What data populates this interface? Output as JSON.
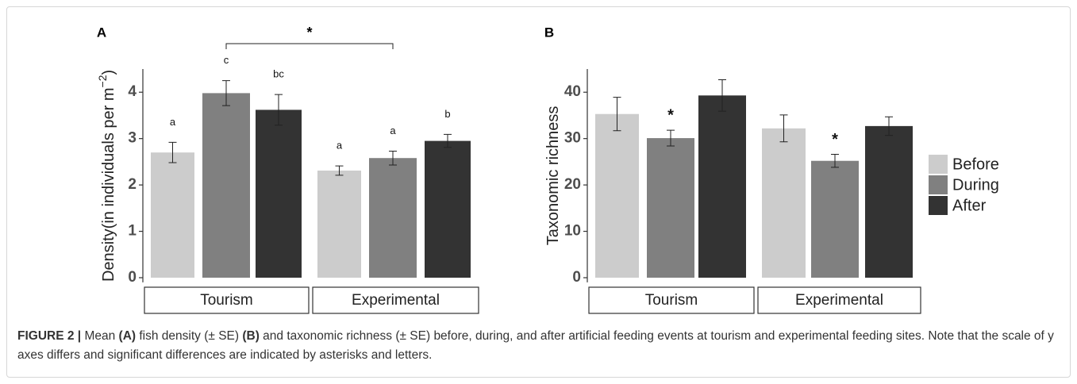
{
  "chart_data": [
    {
      "type": "bar",
      "panel": "A",
      "y_label": [
        "Density(in individuals per m",
        "−2",
        ")"
      ],
      "categories": [
        "Tourism",
        "Experimental"
      ],
      "ylim": [
        -0.1,
        4.5
      ],
      "yticks": [
        0,
        1,
        2,
        3,
        4
      ],
      "series": [
        {
          "color": "#cccccc",
          "values": [
            2.7,
            2.31
          ],
          "errors": [
            0.22,
            0.1
          ],
          "labels": [
            "a",
            "a"
          ]
        },
        {
          "color": "#808080",
          "values": [
            3.98,
            2.58
          ],
          "errors": [
            0.27,
            0.15
          ],
          "labels": [
            "c",
            "a"
          ]
        },
        {
          "color": "#333333",
          "values": [
            3.62,
            2.95
          ],
          "errors": [
            0.33,
            0.14
          ],
          "labels": [
            "bc",
            "b"
          ]
        }
      ],
      "bracket_label": "*"
    },
    {
      "type": "bar",
      "panel": "B",
      "y_label": [
        "Taxonomic richness"
      ],
      "categories": [
        "Tourism",
        "Experimental"
      ],
      "ylim": [
        -1,
        45
      ],
      "yticks": [
        0,
        10,
        20,
        30,
        40
      ],
      "series": [
        {
          "color": "#cccccc",
          "values": [
            35.3,
            32.2
          ],
          "errors": [
            3.6,
            2.9
          ]
        },
        {
          "color": "#808080",
          "values": [
            30.1,
            25.2
          ],
          "errors": [
            1.7,
            1.4
          ],
          "labels": [
            "*",
            "*"
          ]
        },
        {
          "color": "#333333",
          "values": [
            39.3,
            32.7
          ],
          "errors": [
            3.4,
            2.0
          ]
        }
      ]
    }
  ],
  "legend": {
    "position": "right",
    "items": [
      {
        "name": "Before",
        "color": "#cccccc"
      },
      {
        "name": "During",
        "color": "#808080"
      },
      {
        "name": "After",
        "color": "#333333"
      }
    ]
  },
  "caption": {
    "label": "FIGURE 2 |",
    "parts": [
      " Mean ",
      "(A)",
      " fish density (± SE) ",
      "(B)",
      " and taxonomic richness (± SE) before, during, and after artificial feeding events at tourism and experimental feeding sites. Note that the scale of y axes differs and significant differences are indicated by asterisks and letters."
    ]
  }
}
